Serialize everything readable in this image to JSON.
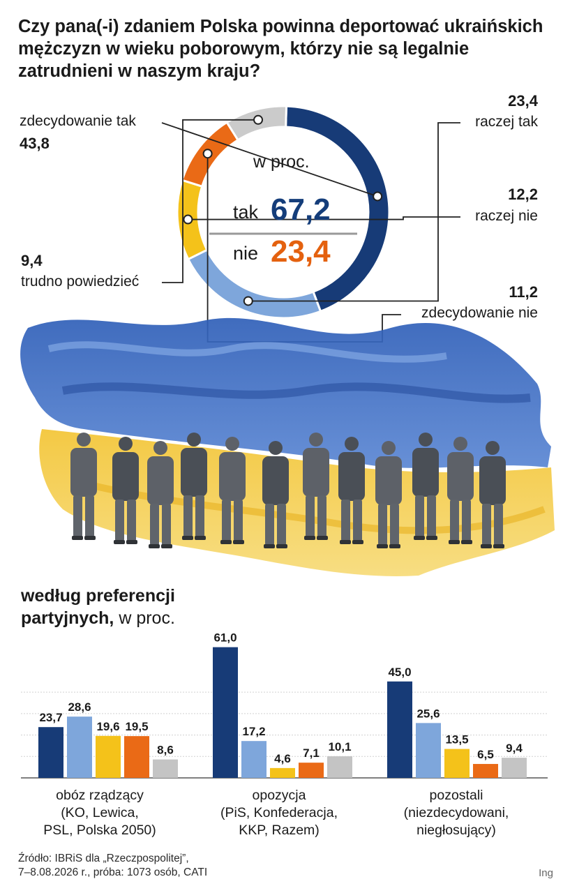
{
  "title": "Czy pana(-i) zdaniem Polska powinna deportować ukraińskich mężczyzn w wieku poborowym, którzy nie są legalnie zatrudnieni w naszym kraju?",
  "donut": {
    "center_unit": "w proc.",
    "yes_label": "tak",
    "yes_value": "67,2",
    "no_label": "nie",
    "no_value": "23,4",
    "colors": {
      "yes": "#143d7a",
      "no": "#e4610f",
      "divider": "#999999"
    }
  },
  "chart_data": [
    {
      "type": "pie",
      "slices": [
        {
          "label": "zdecydowanie tak",
          "value": 43.8,
          "display": "43,8",
          "color": "#173b77"
        },
        {
          "label": "raczej tak",
          "value": 23.4,
          "display": "23,4",
          "color": "#7ea6db"
        },
        {
          "label": "raczej nie",
          "value": 12.2,
          "display": "12,2",
          "color": "#f4c21a"
        },
        {
          "label": "zdecydowanie nie",
          "value": 11.2,
          "display": "11,2",
          "color": "#ea6a16"
        },
        {
          "label": "trudno powiedzieć",
          "value": 9.4,
          "display": "9,4",
          "color": "#cbcbcb"
        }
      ]
    },
    {
      "type": "bar",
      "title": "według preferencji",
      "title_line2": "partyjnych,",
      "unit": "w proc.",
      "ylim": [
        0,
        70
      ],
      "groups": [
        {
          "label": [
            "obóz rządzący",
            "(KO, Lewica,",
            "PSL, Polska 2050)"
          ],
          "values": [
            23.7,
            28.6,
            19.6,
            19.5,
            8.6
          ],
          "display": [
            "23,7",
            "28,6",
            "19,6",
            "19,5",
            "8,6"
          ]
        },
        {
          "label": [
            "opozycja",
            "(PiS, Konfederacja,",
            "KKP, Razem)"
          ],
          "values": [
            61.0,
            17.2,
            4.6,
            7.1,
            10.1
          ],
          "display": [
            "61,0",
            "17,2",
            "4,6",
            "7,1",
            "10,1"
          ]
        },
        {
          "label": [
            "pozostali",
            "(niezdecydowani,",
            "niegłosujący)"
          ],
          "values": [
            45.0,
            25.6,
            13.5,
            6.5,
            9.4
          ],
          "display": [
            "45,0",
            "25,6",
            "13,5",
            "6,5",
            "9,4"
          ]
        }
      ],
      "series_colors": [
        "#173b77",
        "#7ea6db",
        "#f4c21a",
        "#ea6a16",
        "#c4c4c4"
      ]
    }
  ],
  "footer": {
    "line1": "Źródło: IBRiS dla „Rzeczpospolitej”,",
    "line2": "7–8.08.2026 r., próba: 1073 osób, CATI"
  },
  "credit": "Ing"
}
